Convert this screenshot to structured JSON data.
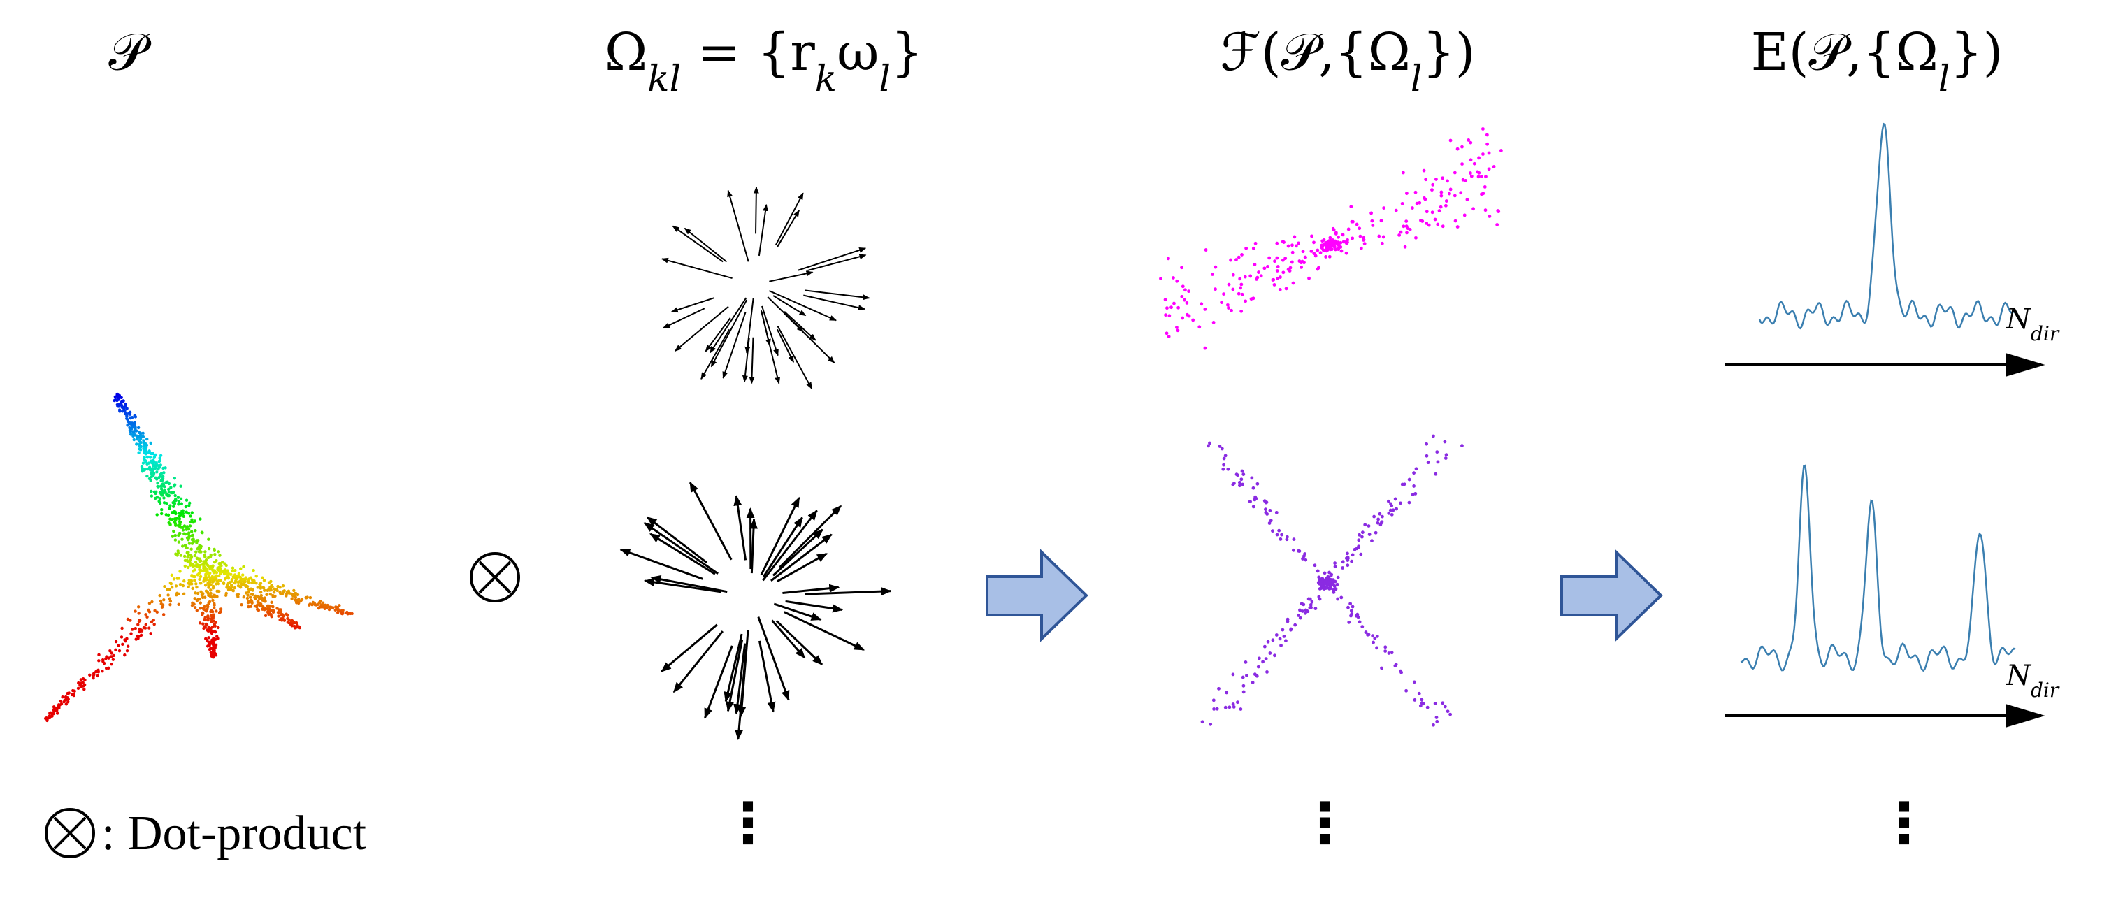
{
  "headers": [
    [
      "𝒫"
    ],
    [
      "Ω",
      "kl",
      " = {r",
      "k",
      "ω",
      "l",
      "}"
    ],
    [
      "ℱ(𝒫,{Ω",
      "l",
      "})"
    ],
    [
      "E(𝒫,{Ω",
      "l",
      "})"
    ]
  ],
  "operator": "⊗",
  "plots": [
    {
      "axis_label": [
        "N",
        "dir"
      ]
    },
    {
      "axis_label": [
        "N",
        "dir"
      ]
    }
  ],
  "legend": {
    "symbol": "⊗",
    "text": ": Dot-product"
  },
  "continuation": [
    "⋮",
    "⋮",
    "⋮"
  ]
}
